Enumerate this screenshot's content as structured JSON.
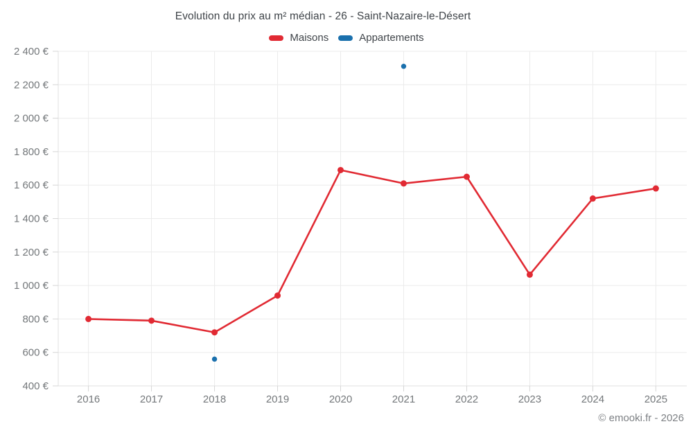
{
  "header": {
    "title": "Evolution du prix au m² médian - 26 - Saint-Nazaire-le-Désert"
  },
  "legend": {
    "items": [
      {
        "id": "maisons",
        "label": "Maisons",
        "color": "#e12a33"
      },
      {
        "id": "appartements",
        "label": "Appartements",
        "color": "#1a70ad"
      }
    ]
  },
  "footer": {
    "credit": "© emooki.fr - 2026"
  },
  "colors": {
    "maisons": "#e12a33",
    "appartements": "#1a70ad",
    "grid_line": "#ebebeb",
    "axis_line": "#e0e0e0",
    "tick_mark": "#d6d6d6",
    "tick_label": "#73777a",
    "title_text": "#3f4449",
    "background": "#ffffff"
  },
  "chart_data": {
    "type": "line",
    "title": "Evolution du prix au m² médian - 26 - Saint-Nazaire-le-Désert",
    "xlabel": "",
    "ylabel": "",
    "x": [
      2016,
      2017,
      2018,
      2019,
      2020,
      2021,
      2022,
      2023,
      2024,
      2025
    ],
    "x_tick_labels": [
      "2016",
      "2017",
      "2018",
      "2019",
      "2020",
      "2021",
      "2022",
      "2023",
      "2024",
      "2025"
    ],
    "series": [
      {
        "name": "Maisons",
        "color": "#e12a33",
        "values": [
          800,
          790,
          720,
          940,
          1690,
          1610,
          1650,
          1065,
          1520,
          1580
        ],
        "draw_line": true,
        "marker_radius": 4.5,
        "line_width": 2.6
      },
      {
        "name": "Appartements",
        "color": "#1a70ad",
        "values": [
          null,
          null,
          560,
          null,
          null,
          2310,
          null,
          null,
          null,
          null
        ],
        "draw_line": true,
        "marker_radius": 3.7,
        "line_width": 2.6
      }
    ],
    "ylim": [
      400,
      2400
    ],
    "y_ticks": [
      400,
      600,
      800,
      1000,
      1200,
      1400,
      1600,
      1800,
      2000,
      2200,
      2400
    ],
    "y_tick_labels": [
      "400 €",
      "600 €",
      "800 €",
      "1 000 €",
      "1 200 €",
      "1 400 €",
      "1 600 €",
      "1 800 €",
      "2 000 €",
      "2 200 €",
      "2 400 €"
    ],
    "grid": true,
    "legend_position": "top",
    "currency_suffix": " €"
  }
}
